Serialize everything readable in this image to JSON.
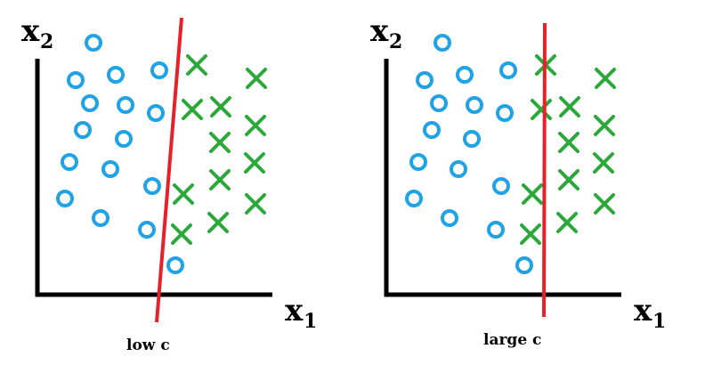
{
  "colors": {
    "axis": "#000000",
    "circle": "#1fa3e6",
    "cross": "#2aa83a",
    "boundary": "#e8202a"
  },
  "icons": {
    "circle": "circle-marker-icon",
    "cross": "cross-marker-icon"
  },
  "panels": [
    {
      "id": "left",
      "y_axis_label": "x",
      "y_axis_sub": "2",
      "x_axis_label": "x",
      "x_axis_sub": "1",
      "caption": "low c"
    },
    {
      "id": "right",
      "y_axis_label": "x",
      "y_axis_sub": "2",
      "x_axis_label": "x",
      "x_axis_sub": "1",
      "caption": "large c"
    }
  ]
}
